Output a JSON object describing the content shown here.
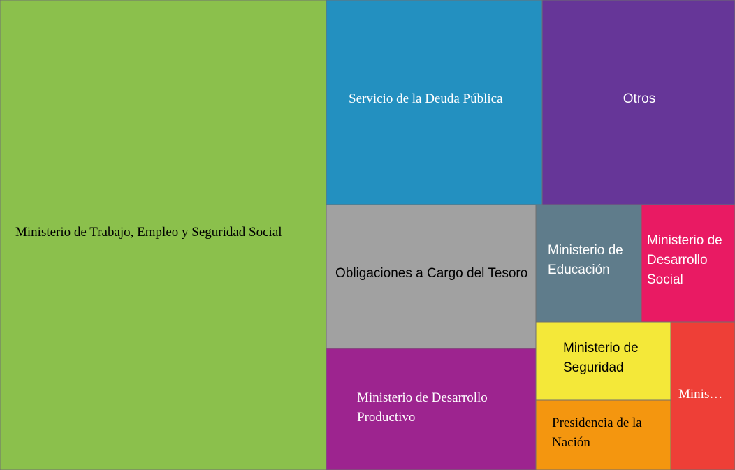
{
  "chart_data": {
    "type": "treemap",
    "title": "",
    "nodes": [
      {
        "label": "Ministerio de Trabajo, Empleo y Seguridad Social",
        "share": 0.441,
        "color": "#8bc04c",
        "text_color": "#000000"
      },
      {
        "label": "Servicio de la Deuda Pública",
        "share": 0.127,
        "color": "#2390c0",
        "text_color": "#ffffff"
      },
      {
        "label": "Otros",
        "share": 0.113,
        "color": "#663698",
        "text_color": "#ffffff"
      },
      {
        "label": "Obligaciones a Cargo del Tesoro",
        "share": 0.087,
        "color": "#a1a1a1",
        "text_color": "#000000"
      },
      {
        "label": "Ministerio de Desarrollo Productivo",
        "share": 0.074,
        "color": "#9d248f",
        "text_color": "#ffffff"
      },
      {
        "label": "Ministerio de Educación",
        "share": 0.036,
        "color": "#5f7c8b",
        "text_color": "#ffffff"
      },
      {
        "label": "Ministerio de Desarrollo Social",
        "share": 0.032,
        "color": "#e91a63",
        "text_color": "#ffffff"
      },
      {
        "label": "Ministerio de Seguridad",
        "share": 0.024,
        "color": "#f4e839",
        "text_color": "#000000"
      },
      {
        "label": "Presidencia de la Nación",
        "share": 0.024,
        "color": "#f4960f",
        "text_color": "#000000"
      },
      {
        "label": "Ministerio de Salud",
        "share": 0.018,
        "color": "#ee3f37",
        "text_color": "#ffffff"
      }
    ]
  }
}
